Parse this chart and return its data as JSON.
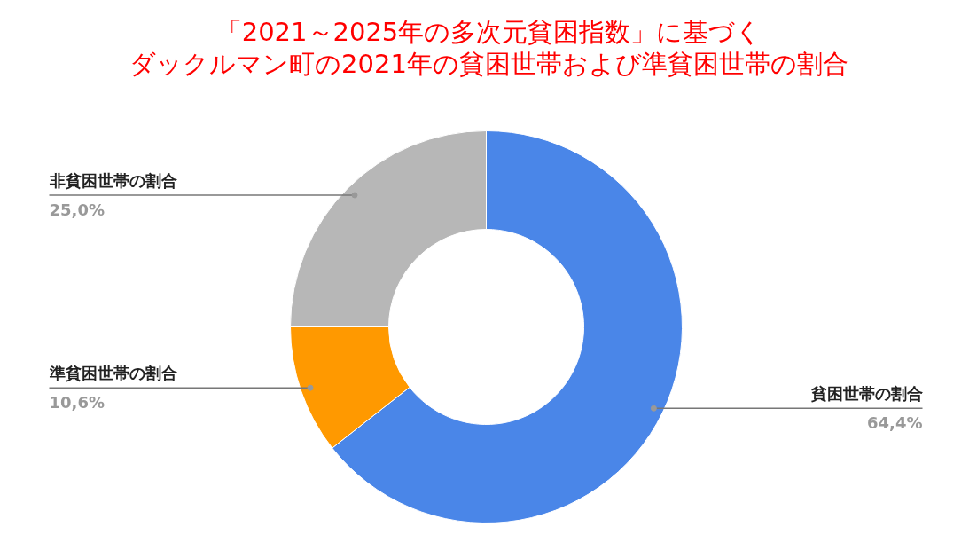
{
  "chart_data": {
    "type": "donut",
    "title": "「2021～2025年の多次元貧困指数」に基づく",
    "subtitle": "ダックルマン町の2021年の貧困世帯および準貧困世帯の割合",
    "categories": [
      "貧困世帯の割合",
      "準貧困世帯の割合",
      "非貧困世帯の割合"
    ],
    "values": [
      64.4,
      10.6,
      25.0
    ],
    "value_labels": [
      "64,4%",
      "10,6%",
      "25,0%"
    ],
    "colors": [
      "#4a86e8",
      "#ff9900",
      "#b7b7b7"
    ],
    "legend": false
  }
}
